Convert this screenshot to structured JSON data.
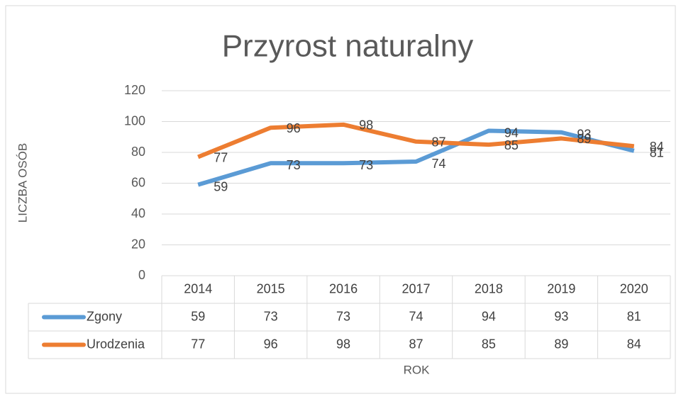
{
  "chart_data": {
    "type": "line",
    "title": "Przyrost naturalny",
    "x_label": "ROK",
    "y_label": "LICZBA OSÓB",
    "categories": [
      "2014",
      "2015",
      "2016",
      "2017",
      "2018",
      "2019",
      "2020"
    ],
    "series": [
      {
        "name": "Zgony",
        "color": "#5b9bd5",
        "values": [
          59,
          73,
          73,
          74,
          94,
          93,
          81
        ]
      },
      {
        "name": "Urodzenia",
        "color": "#ed7d31",
        "values": [
          77,
          96,
          98,
          87,
          85,
          89,
          84
        ]
      }
    ],
    "ylim": [
      0,
      120
    ],
    "yticks": [
      0,
      20,
      40,
      60,
      80,
      100,
      120
    ],
    "grid": true
  }
}
